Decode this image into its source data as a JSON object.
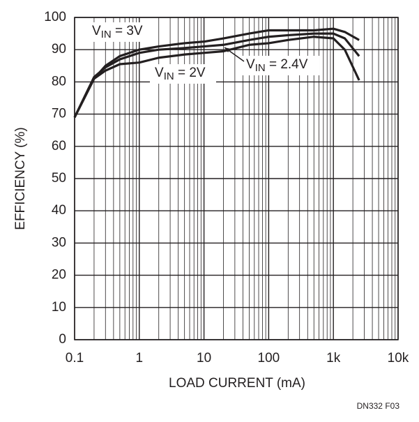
{
  "chart_data": {
    "type": "line",
    "xlabel": "LOAD CURRENT (mA)",
    "ylabel": "EFFICIENCY (%)",
    "footnote": "DN332 F03",
    "x": [
      0.1,
      0.2,
      0.3,
      0.5,
      1,
      2,
      5,
      10,
      20,
      50,
      100,
      200,
      500,
      1000,
      1500,
      2500
    ],
    "series": [
      {
        "name": "VIN = 3V",
        "color": "#231f20",
        "values": [
          69,
          81,
          85,
          88,
          90,
          91,
          92,
          92.5,
          93.5,
          95,
          96,
          96,
          96,
          96.5,
          95.5,
          93
        ]
      },
      {
        "name": "VIN = 2.4V",
        "color": "#231f20",
        "values": [
          69,
          81.5,
          84.5,
          87,
          89,
          90,
          90.5,
          91,
          91.5,
          93,
          94,
          94.5,
          95,
          95,
          93.5,
          88
        ]
      },
      {
        "name": "VIN = 2V",
        "color": "#231f20",
        "values": [
          69,
          81,
          83.5,
          85.5,
          86,
          87.5,
          88.5,
          89,
          89.5,
          91.5,
          92,
          93,
          94,
          93.5,
          90,
          80.5
        ]
      }
    ],
    "xlog": true,
    "xlim": [
      0.1,
      10000
    ],
    "xticks": [
      0.1,
      1,
      10,
      100,
      {
        "value": 1000,
        "label": "1k"
      },
      {
        "value": 10000,
        "label": "10k"
      }
    ],
    "ylim": [
      0,
      100
    ],
    "yticks": [
      0,
      10,
      20,
      30,
      40,
      50,
      60,
      70,
      80,
      90,
      100
    ],
    "grid": true
  }
}
